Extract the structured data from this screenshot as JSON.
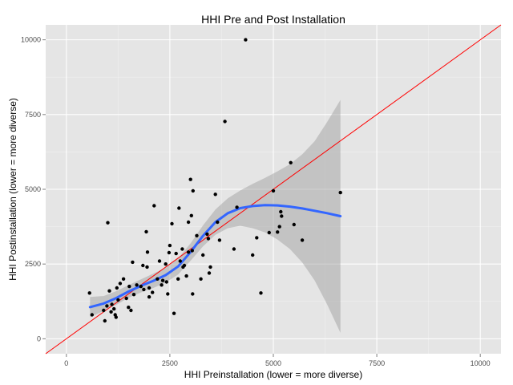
{
  "chart_data": {
    "type": "scatter",
    "title": "HHI Pre and Post Installation",
    "xlabel": "HHI Preinstallation (lower = more diverse)",
    "ylabel": "HHI Postinstallation (lower = more diverse)",
    "xlim": [
      -500,
      10500
    ],
    "ylim": [
      -500,
      10500
    ],
    "xticks": [
      0,
      2500,
      5000,
      7500,
      10000
    ],
    "yticks": [
      0,
      2500,
      5000,
      7500,
      10000
    ],
    "xtick_labels": [
      "0",
      "2500",
      "5000",
      "7500",
      "10000"
    ],
    "ytick_labels": [
      "0",
      "2500",
      "5000",
      "7500",
      "10000"
    ],
    "grid": true,
    "background": "#e5e5e5",
    "points": [
      [
        560,
        1530
      ],
      [
        620,
        800
      ],
      [
        900,
        950
      ],
      [
        930,
        600
      ],
      [
        980,
        1100
      ],
      [
        1000,
        3880
      ],
      [
        1040,
        1600
      ],
      [
        1080,
        900
      ],
      [
        1100,
        1150
      ],
      [
        1150,
        1000
      ],
      [
        1180,
        800
      ],
      [
        1200,
        720
      ],
      [
        1220,
        1700
      ],
      [
        1250,
        1300
      ],
      [
        1300,
        1850
      ],
      [
        1380,
        2000
      ],
      [
        1450,
        1350
      ],
      [
        1500,
        1050
      ],
      [
        1520,
        1750
      ],
      [
        1560,
        950
      ],
      [
        1600,
        2560
      ],
      [
        1630,
        1480
      ],
      [
        1700,
        1800
      ],
      [
        1800,
        1750
      ],
      [
        1850,
        2450
      ],
      [
        1870,
        1650
      ],
      [
        1930,
        3580
      ],
      [
        1950,
        2400
      ],
      [
        1960,
        2900
      ],
      [
        2000,
        1400
      ],
      [
        2000,
        1700
      ],
      [
        2080,
        1550
      ],
      [
        2120,
        4450
      ],
      [
        2200,
        2000
      ],
      [
        2250,
        2600
      ],
      [
        2300,
        1800
      ],
      [
        2330,
        1950
      ],
      [
        2400,
        2500
      ],
      [
        2420,
        1900
      ],
      [
        2450,
        1500
      ],
      [
        2480,
        2880
      ],
      [
        2500,
        3120
      ],
      [
        2550,
        3850
      ],
      [
        2600,
        850
      ],
      [
        2650,
        2850
      ],
      [
        2700,
        2000
      ],
      [
        2720,
        4370
      ],
      [
        2750,
        2600
      ],
      [
        2800,
        3000
      ],
      [
        2820,
        2400
      ],
      [
        2850,
        2450
      ],
      [
        2900,
        2100
      ],
      [
        2950,
        3900
      ],
      [
        2950,
        2900
      ],
      [
        3000,
        5330
      ],
      [
        3020,
        4120
      ],
      [
        3040,
        2950
      ],
      [
        3050,
        1500
      ],
      [
        3060,
        4950
      ],
      [
        3150,
        3450
      ],
      [
        3250,
        2000
      ],
      [
        3300,
        2800
      ],
      [
        3400,
        3500
      ],
      [
        3430,
        3350
      ],
      [
        3450,
        2200
      ],
      [
        3480,
        2400
      ],
      [
        3600,
        4830
      ],
      [
        3650,
        3900
      ],
      [
        3700,
        3300
      ],
      [
        3830,
        7270
      ],
      [
        4050,
        3000
      ],
      [
        4120,
        4400
      ],
      [
        4330,
        10000
      ],
      [
        4500,
        2800
      ],
      [
        4600,
        3380
      ],
      [
        4700,
        1530
      ],
      [
        4900,
        3550
      ],
      [
        5000,
        4950
      ],
      [
        5100,
        3570
      ],
      [
        5150,
        3750
      ],
      [
        5180,
        4250
      ],
      [
        5200,
        4100
      ],
      [
        5420,
        5890
      ],
      [
        5500,
        3820
      ],
      [
        5700,
        3300
      ],
      [
        6620,
        4890
      ]
    ],
    "smooth_line": {
      "name": "loess",
      "color": "#3366ff",
      "x": [
        570,
        900,
        1200,
        1500,
        1800,
        2100,
        2400,
        2700,
        3000,
        3300,
        3600,
        3900,
        4200,
        4500,
        4800,
        5100,
        5400,
        5700,
        6000,
        6300,
        6620
      ],
      "y": [
        1060,
        1180,
        1360,
        1580,
        1770,
        1940,
        2130,
        2420,
        2900,
        3440,
        3900,
        4200,
        4370,
        4440,
        4470,
        4460,
        4420,
        4360,
        4280,
        4200,
        4100
      ],
      "lower": [
        720,
        930,
        1130,
        1370,
        1550,
        1700,
        1880,
        2150,
        2610,
        3090,
        3480,
        3700,
        3780,
        3700,
        3560,
        3320,
        3000,
        2550,
        1950,
        1150,
        200
      ],
      "upper": [
        1400,
        1430,
        1590,
        1790,
        1990,
        2180,
        2380,
        2690,
        3190,
        3790,
        4320,
        4700,
        4960,
        5180,
        5380,
        5600,
        5840,
        6170,
        6610,
        7250,
        7990
      ]
    },
    "band_color": "#999999",
    "reference_line": {
      "slope": 1,
      "intercept": 0,
      "color": "#ff0000"
    }
  }
}
